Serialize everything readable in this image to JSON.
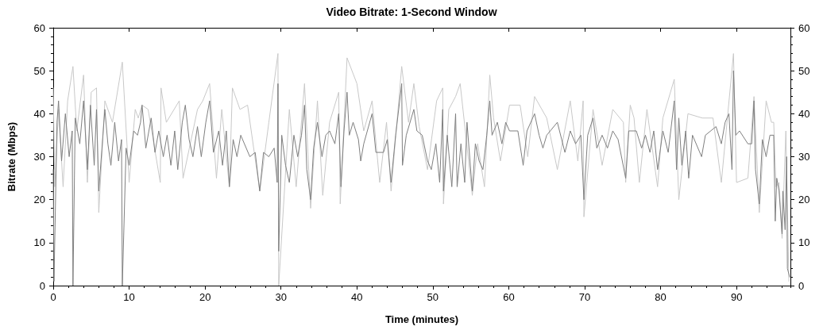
{
  "chart_data": {
    "type": "line",
    "title": "Video Bitrate: 1-Second Window",
    "xlabel": "Time (minutes)",
    "ylabel": "Bitrate (Mbps)",
    "xlim": [
      0,
      97.1
    ],
    "xticks": [
      0,
      10,
      20,
      30,
      40,
      50,
      60,
      70,
      80,
      90
    ],
    "ylim": [
      0,
      60
    ],
    "yticks": [
      0,
      10,
      20,
      30,
      40,
      50,
      60
    ],
    "y2lim": [
      0,
      60
    ],
    "y2ticks": [
      0,
      10,
      20,
      30,
      40,
      50,
      60
    ],
    "series": [
      {
        "color": "#c8c8c8",
        "x": [
          0,
          0.2,
          0.7,
          1.3,
          1.9,
          2.6,
          3.1,
          4.0,
          4.5,
          5.0,
          5.7,
          6.0,
          6.8,
          7.8,
          9.1,
          10.0,
          10.8,
          11.2,
          11.7,
          12.5,
          14.1,
          14.2,
          14.9,
          16.6,
          17.1,
          19.0,
          19.7,
          20.6,
          21.5,
          22.2,
          23.2,
          23.6,
          24.6,
          25.6,
          27.2,
          28.4,
          29.6,
          29.7,
          31.1,
          32.0,
          33.1,
          33.9,
          34.8,
          35.5,
          36.4,
          37.6,
          37.8,
          38.7,
          40.0,
          40.9,
          42.0,
          43.0,
          43.9,
          44.5,
          45.9,
          46.8,
          47.5,
          48.2,
          49.3,
          50.5,
          51.3,
          51.4,
          52.1,
          53.0,
          53.6,
          55.2,
          55.9,
          56.8,
          57.5,
          58.0,
          58.9,
          60.1,
          61.5,
          62.5,
          63.4,
          65.0,
          66.4,
          68.1,
          69.1,
          69.8,
          69.9,
          71.1,
          72.3,
          73.7,
          75.1,
          75.4,
          76.0,
          76.5,
          77.2,
          78.2,
          79.6,
          80.3,
          81.8,
          82.4,
          83.6,
          85.5,
          86.9,
          88.0,
          89.6,
          90.0,
          91.5,
          92.3,
          93.0,
          93.9,
          94.6,
          94.9,
          95.2,
          95.6,
          96.0,
          96.5,
          96.9
        ],
        "values": [
          46,
          23,
          41,
          23,
          43,
          51,
          36,
          49,
          24,
          45,
          46,
          17,
          43,
          38,
          52,
          24,
          41,
          39,
          42,
          41,
          24,
          46,
          38,
          43,
          25,
          41,
          43,
          47,
          25,
          41,
          23,
          46,
          41,
          42,
          22,
          38,
          54,
          0,
          41,
          23,
          47,
          18,
          43,
          21,
          38,
          45,
          19,
          53,
          47,
          36,
          43,
          24,
          38,
          22,
          51,
          38,
          47,
          37,
          27,
          43,
          46,
          19,
          41,
          44,
          47,
          21,
          33,
          23,
          49,
          39,
          29,
          42,
          42,
          30,
          44,
          39,
          27,
          43,
          29,
          43,
          16,
          41,
          28,
          41,
          38,
          24,
          42,
          39,
          24,
          41,
          23,
          39,
          48,
          20,
          40,
          39,
          39,
          24,
          54,
          24,
          25,
          44,
          17,
          43,
          38,
          38,
          23,
          24,
          11,
          36,
          1
        ]
      },
      {
        "color": "#7f7f7f",
        "x": [
          0,
          0.1,
          0.5,
          0.7,
          1.1,
          1.6,
          2.1,
          2.5,
          2.6,
          2.9,
          3.5,
          4.0,
          4.5,
          4.9,
          5.4,
          5.7,
          6.0,
          6.8,
          7.2,
          7.6,
          8.1,
          8.6,
          9.0,
          9.1,
          9.6,
          10.0,
          10.6,
          11.1,
          11.5,
          11.7,
          12.2,
          12.9,
          13.4,
          13.9,
          14.5,
          15.0,
          15.5,
          16.0,
          16.4,
          17.0,
          17.4,
          17.9,
          18.4,
          19.0,
          19.5,
          20.1,
          20.6,
          21.1,
          21.8,
          22.3,
          22.8,
          23.2,
          23.7,
          24.2,
          24.7,
          25.9,
          26.6,
          27.2,
          27.7,
          28.4,
          29.1,
          29.5,
          29.6,
          29.7,
          30.1,
          30.6,
          31.1,
          31.7,
          32.2,
          32.7,
          33.1,
          33.4,
          33.9,
          34.3,
          34.8,
          35.4,
          35.9,
          36.4,
          37.1,
          37.6,
          37.9,
          38.3,
          38.7,
          39.0,
          39.5,
          40.2,
          40.5,
          40.9,
          42.0,
          42.5,
          43.5,
          44.0,
          44.5,
          45.1,
          45.9,
          46.0,
          46.5,
          47.5,
          47.9,
          48.6,
          49.3,
          49.8,
          50.4,
          50.9,
          51.3,
          51.4,
          51.9,
          52.5,
          53.0,
          53.2,
          53.7,
          54.2,
          54.5,
          55.2,
          55.6,
          56.1,
          56.6,
          57.1,
          57.5,
          57.8,
          58.5,
          59.1,
          59.6,
          60.1,
          61.2,
          61.9,
          62.4,
          63.4,
          64.0,
          64.5,
          65.0,
          66.4,
          67.4,
          68.1,
          68.8,
          69.5,
          69.9,
          70.4,
          71.1,
          71.6,
          72.3,
          73.0,
          73.7,
          74.4,
          75.4,
          75.8,
          76.8,
          77.5,
          78.0,
          78.6,
          79.1,
          79.6,
          80.3,
          81.0,
          81.8,
          82.1,
          82.4,
          82.8,
          83.3,
          83.7,
          84.2,
          85.4,
          85.9,
          87.3,
          88.0,
          88.5,
          89.0,
          89.4,
          89.6,
          89.9,
          90.4,
          91.5,
          92.0,
          92.3,
          92.5,
          93.0,
          93.4,
          93.9,
          94.4,
          94.9,
          95.1,
          95.3,
          95.6,
          96.0,
          96.1,
          96.4,
          96.6,
          96.7,
          97.0
        ],
        "values": [
          27,
          1,
          38,
          43,
          29,
          40,
          30,
          36,
          0,
          39,
          33,
          43,
          27,
          42,
          28,
          41,
          22,
          41,
          33,
          28,
          38,
          29,
          34,
          0,
          32,
          28,
          36,
          35,
          38,
          42,
          32,
          39,
          31,
          36,
          30,
          35,
          28,
          36,
          27,
          38,
          42,
          34,
          30,
          37,
          30,
          38,
          43,
          31,
          36,
          28,
          36,
          23,
          34,
          30,
          35,
          30,
          31,
          22,
          31,
          30,
          32,
          24,
          47,
          8,
          35,
          28,
          24,
          35,
          30,
          35,
          42,
          27,
          20,
          32,
          38,
          30,
          35,
          36,
          33,
          40,
          23,
          36,
          45,
          35,
          38,
          34,
          29,
          33,
          40,
          31,
          31,
          34,
          24,
          35,
          47,
          28,
          35,
          41,
          36,
          35,
          29,
          27,
          33,
          24,
          41,
          22,
          35,
          23,
          40,
          23,
          33,
          24,
          38,
          22,
          33,
          29,
          27,
          35,
          43,
          35,
          38,
          33,
          38,
          36,
          36,
          28,
          36,
          40,
          35,
          32,
          35,
          38,
          31,
          36,
          33,
          35,
          20,
          35,
          39,
          32,
          35,
          32,
          36,
          34,
          25,
          36,
          36,
          32,
          35,
          31,
          36,
          27,
          36,
          31,
          43,
          27,
          39,
          28,
          36,
          25,
          35,
          30,
          35,
          37,
          33,
          38,
          40,
          27,
          50,
          35,
          36,
          33,
          33,
          43,
          27,
          19,
          34,
          30,
          35,
          35,
          15,
          25,
          22,
          12,
          22,
          13,
          30,
          4,
          2
        ]
      }
    ]
  }
}
